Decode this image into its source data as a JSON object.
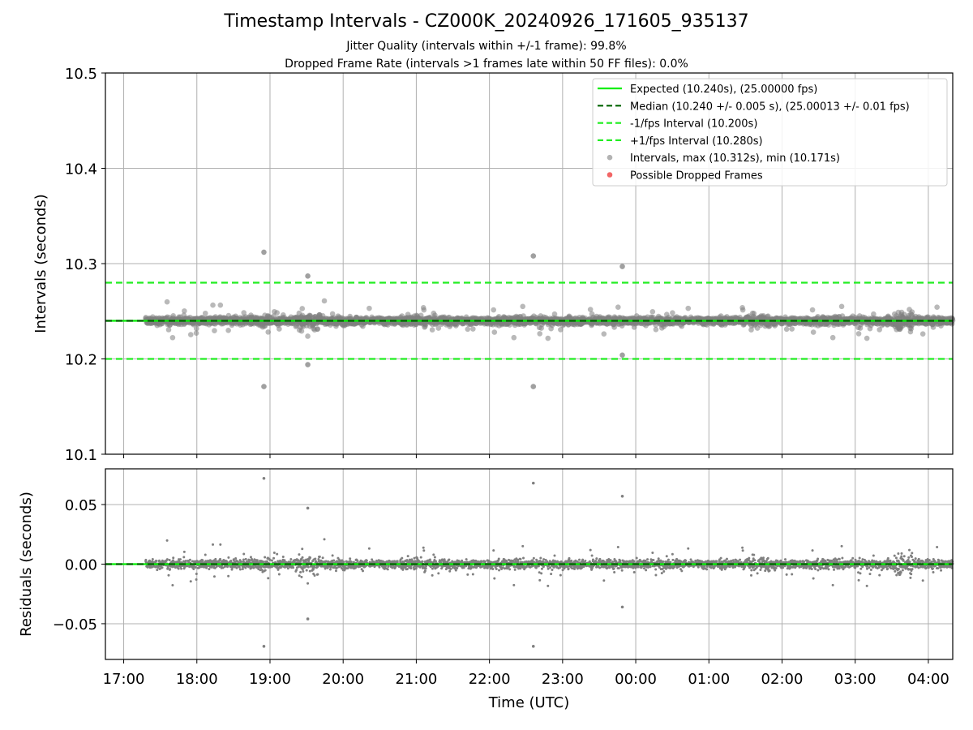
{
  "figure": {
    "title": "Timestamp Intervals - CZ000K_20240926_171605_935137",
    "subtitle1": "Jitter Quality (intervals within +/-1 frame): 99.8%",
    "subtitle2": "Dropped Frame Rate (intervals >1 frames late within 50 FF files): 0.0%"
  },
  "colors": {
    "expected": "#00ee00",
    "median": "#006400",
    "bounds": "#22ee22",
    "points": "#808080",
    "dropped": "#ee3333",
    "grid": "#b0b0b0"
  },
  "chart_data": [
    {
      "type": "scatter",
      "panel": "top",
      "xlabel": "",
      "ylabel": "Intervals (seconds)",
      "x_is_time": true,
      "xlim": [
        "16:45",
        "04:20"
      ],
      "ylim": [
        10.1,
        10.5
      ],
      "yticks": [
        10.1,
        10.2,
        10.3,
        10.4,
        10.5
      ],
      "ytick_labels": [
        "10.1",
        "10.2",
        "10.3",
        "10.4",
        "10.5"
      ],
      "grid": true,
      "legend_position": "top-right",
      "reference_lines": [
        {
          "name": "Expected (10.240s), (25.00000 fps)",
          "y": 10.24,
          "style": "solid",
          "color": "#00ee00"
        },
        {
          "name": "Median (10.240 +/- 0.005 s), (25.00013 +/- 0.01 fps)",
          "y": 10.24,
          "style": "dashed",
          "color": "#006400"
        },
        {
          "name": "-1/fps Interval (10.200s)",
          "y": 10.2,
          "style": "dashed",
          "color": "#22ee22"
        },
        {
          "name": "+1/fps Interval (10.280s)",
          "y": 10.28,
          "style": "dashed",
          "color": "#22ee22"
        }
      ],
      "series": [
        {
          "name": "Intervals, max (10.312s), min (10.171s)",
          "marker": "circle",
          "color": "#999999",
          "baseline": 10.24
        },
        {
          "name": "Possible Dropped Frames",
          "marker": "circle",
          "color": "#ee3333",
          "values": []
        }
      ],
      "notable_points": [
        {
          "x": "18:55",
          "y": 10.312
        },
        {
          "x": "18:55",
          "y": 10.171
        },
        {
          "x": "19:31",
          "y": 10.287
        },
        {
          "x": "19:31",
          "y": 10.194
        },
        {
          "x": "22:36",
          "y": 10.308
        },
        {
          "x": "22:36",
          "y": 10.171
        },
        {
          "x": "23:49",
          "y": 10.297
        },
        {
          "x": "23:49",
          "y": 10.204
        }
      ]
    },
    {
      "type": "scatter",
      "panel": "bottom",
      "xlabel": "Time (UTC)",
      "ylabel": "Residuals (seconds)",
      "x_is_time": true,
      "xlim": [
        "16:45",
        "04:20"
      ],
      "ylim": [
        -0.08,
        0.08
      ],
      "xticks": [
        "17:00",
        "18:00",
        "19:00",
        "20:00",
        "21:00",
        "22:00",
        "23:00",
        "00:00",
        "01:00",
        "02:00",
        "03:00",
        "04:00"
      ],
      "yticks": [
        -0.05,
        0.0,
        0.05
      ],
      "ytick_labels": [
        "−0.05",
        "0.00",
        "0.05"
      ],
      "grid": true,
      "reference_lines": [
        {
          "y": 0.0,
          "style": "solid",
          "color": "#00ee00"
        },
        {
          "y": 0.0,
          "style": "dashed",
          "color": "#006400"
        }
      ],
      "series": [
        {
          "name": "Residuals",
          "marker": "dot",
          "color": "#808080",
          "baseline": 0.0
        }
      ],
      "notable_points": [
        {
          "x": "18:55",
          "y": 0.072
        },
        {
          "x": "18:55",
          "y": -0.069
        },
        {
          "x": "19:31",
          "y": 0.047
        },
        {
          "x": "19:31",
          "y": -0.046
        },
        {
          "x": "22:36",
          "y": 0.068
        },
        {
          "x": "22:36",
          "y": -0.069
        },
        {
          "x": "23:49",
          "y": 0.057
        },
        {
          "x": "23:49",
          "y": -0.036
        }
      ]
    }
  ]
}
